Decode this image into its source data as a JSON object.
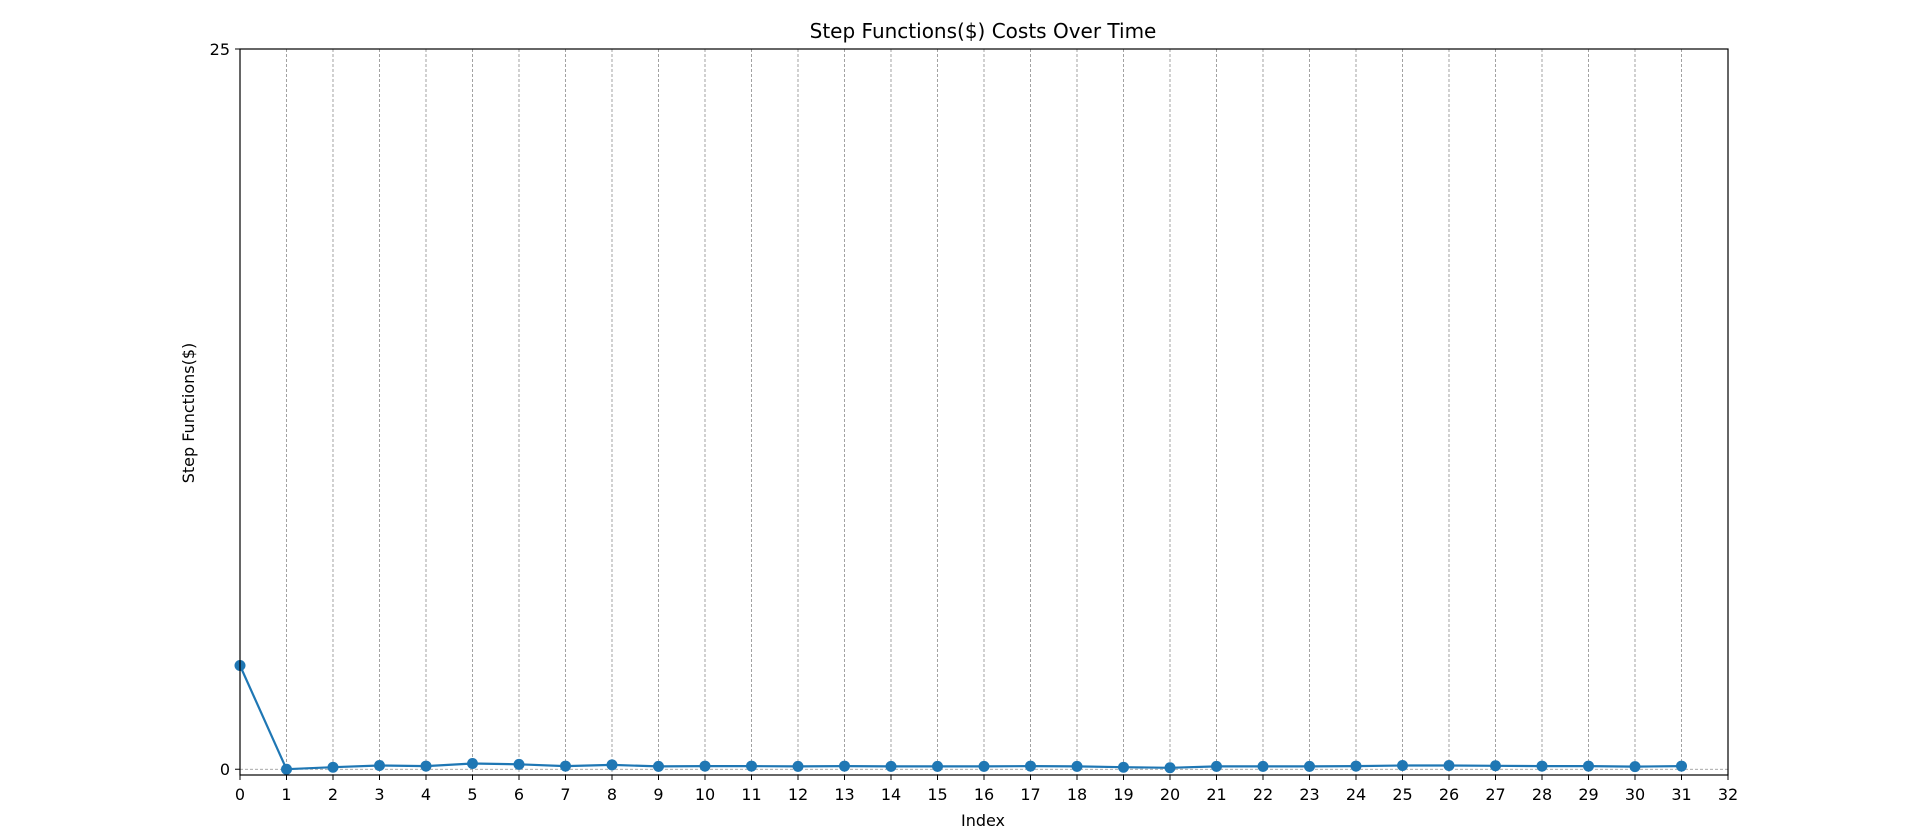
{
  "chart_data": {
    "type": "line",
    "title": "Step Functions($) Costs Over Time",
    "xlabel": "Index",
    "ylabel": "Step Functions($)",
    "xlim": [
      0,
      32
    ],
    "ylim": [
      -0.2,
      25
    ],
    "x_ticks": [
      0,
      1,
      2,
      3,
      4,
      5,
      6,
      7,
      8,
      9,
      10,
      11,
      12,
      13,
      14,
      15,
      16,
      17,
      18,
      19,
      20,
      21,
      22,
      23,
      24,
      25,
      26,
      27,
      28,
      29,
      30,
      31,
      32
    ],
    "y_ticks": [
      0,
      25
    ],
    "grid": "vertical dashed at x ticks; horizontal dashed at y=0",
    "legend": "none",
    "colors": {
      "line": "#1f77b4",
      "grid": "#8c8c8c"
    },
    "series": [
      {
        "x": [
          0,
          1,
          2,
          3,
          4,
          5,
          6,
          7,
          8,
          9,
          10,
          11,
          12,
          13,
          14,
          15,
          16,
          17,
          18,
          19,
          20,
          21,
          22,
          23,
          24,
          25,
          26,
          27,
          28,
          29,
          30,
          31
        ],
        "values": [
          3.6,
          0.0,
          0.07,
          0.13,
          0.11,
          0.2,
          0.17,
          0.11,
          0.15,
          0.1,
          0.11,
          0.11,
          0.1,
          0.11,
          0.1,
          0.1,
          0.1,
          0.11,
          0.1,
          0.07,
          0.05,
          0.1,
          0.1,
          0.1,
          0.11,
          0.13,
          0.13,
          0.12,
          0.11,
          0.11,
          0.09,
          0.11
        ]
      }
    ]
  }
}
